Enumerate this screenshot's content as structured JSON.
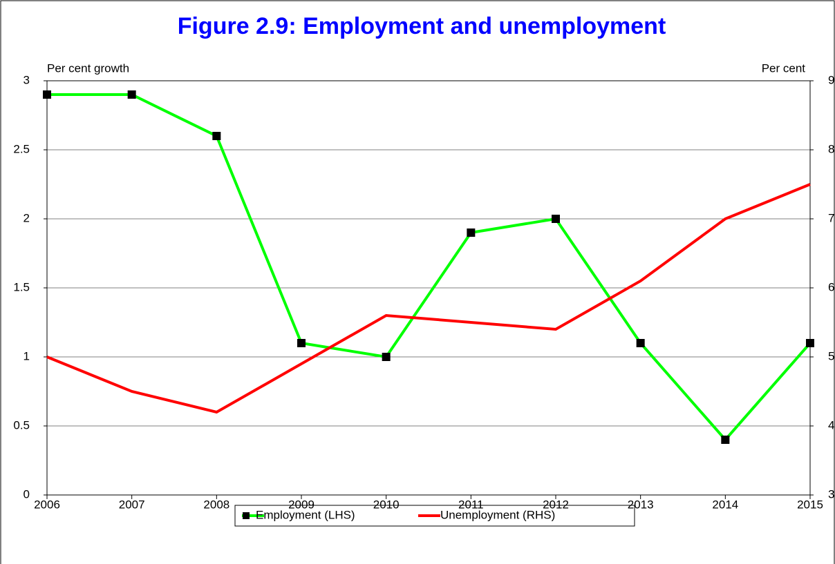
{
  "chart_data": {
    "type": "line",
    "title": "Figure 2.9:  Employment and unemployment",
    "y_label": "Per cent growth",
    "y2_label": "Per cent",
    "categories": [
      "2006",
      "2007",
      "2008",
      "2009",
      "2010",
      "2011",
      "2012",
      "2013",
      "2014",
      "2015"
    ],
    "series": [
      {
        "name": "Employment (LHS)",
        "color": "#00ff00",
        "marker_color": "#000000",
        "values": [
          2.9,
          2.9,
          2.6,
          1.1,
          1.0,
          1.9,
          2.0,
          1.1,
          0.4,
          1.1
        ]
      },
      {
        "name": "Unemployment (RHS)",
        "color": "#ff0000",
        "axis": "y2",
        "values": [
          5.0,
          4.5,
          4.2,
          4.9,
          5.6,
          5.5,
          5.4,
          6.1,
          7.0,
          7.5
        ]
      }
    ],
    "ylim": [
      0,
      3
    ],
    "yticks": [
      0,
      0.5,
      1,
      1.5,
      2,
      2.5,
      3
    ],
    "y2lim": [
      3,
      9
    ],
    "y2ticks": [
      3,
      4,
      5,
      6,
      7,
      8,
      9
    ],
    "grid": true,
    "legend": "bottom"
  }
}
